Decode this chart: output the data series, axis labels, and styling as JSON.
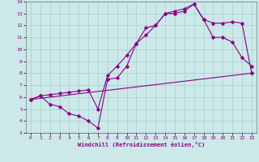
{
  "xlabel": "Windchill (Refroidissement éolien,°C)",
  "bg_color": "#cce8e8",
  "line_color": "#880088",
  "xlim": [
    -0.5,
    23.5
  ],
  "ylim": [
    3,
    14
  ],
  "xticks": [
    0,
    1,
    2,
    3,
    4,
    5,
    6,
    7,
    8,
    9,
    10,
    11,
    12,
    13,
    14,
    15,
    16,
    17,
    18,
    19,
    20,
    21,
    22,
    23
  ],
  "yticks": [
    3,
    4,
    5,
    6,
    7,
    8,
    9,
    10,
    11,
    12,
    13,
    14
  ],
  "line1_x": [
    0,
    1,
    2,
    3,
    4,
    5,
    6,
    7,
    8,
    9,
    10,
    11,
    12,
    13,
    14,
    15,
    16,
    17,
    18,
    19,
    20,
    21,
    22,
    23
  ],
  "line1_y": [
    5.8,
    6.1,
    5.4,
    5.2,
    4.6,
    4.4,
    4.0,
    3.4,
    7.5,
    7.6,
    8.6,
    10.5,
    11.2,
    12.0,
    13.0,
    13.0,
    13.2,
    13.8,
    12.5,
    11.0,
    11.0,
    10.6,
    9.3,
    8.6
  ],
  "line2_x": [
    0,
    1,
    2,
    3,
    4,
    5,
    6,
    7,
    8,
    9,
    10,
    11,
    12,
    13,
    14,
    15,
    16,
    17,
    18,
    19,
    20,
    21,
    22,
    23
  ],
  "line2_y": [
    5.8,
    6.1,
    6.2,
    6.3,
    6.4,
    6.5,
    6.6,
    5.0,
    7.8,
    8.6,
    9.5,
    10.5,
    11.8,
    12.0,
    13.0,
    13.2,
    13.4,
    13.8,
    12.5,
    12.2,
    12.2,
    12.3,
    12.2,
    8.0
  ],
  "line3_x": [
    0,
    23
  ],
  "line3_y": [
    5.8,
    8.0
  ]
}
